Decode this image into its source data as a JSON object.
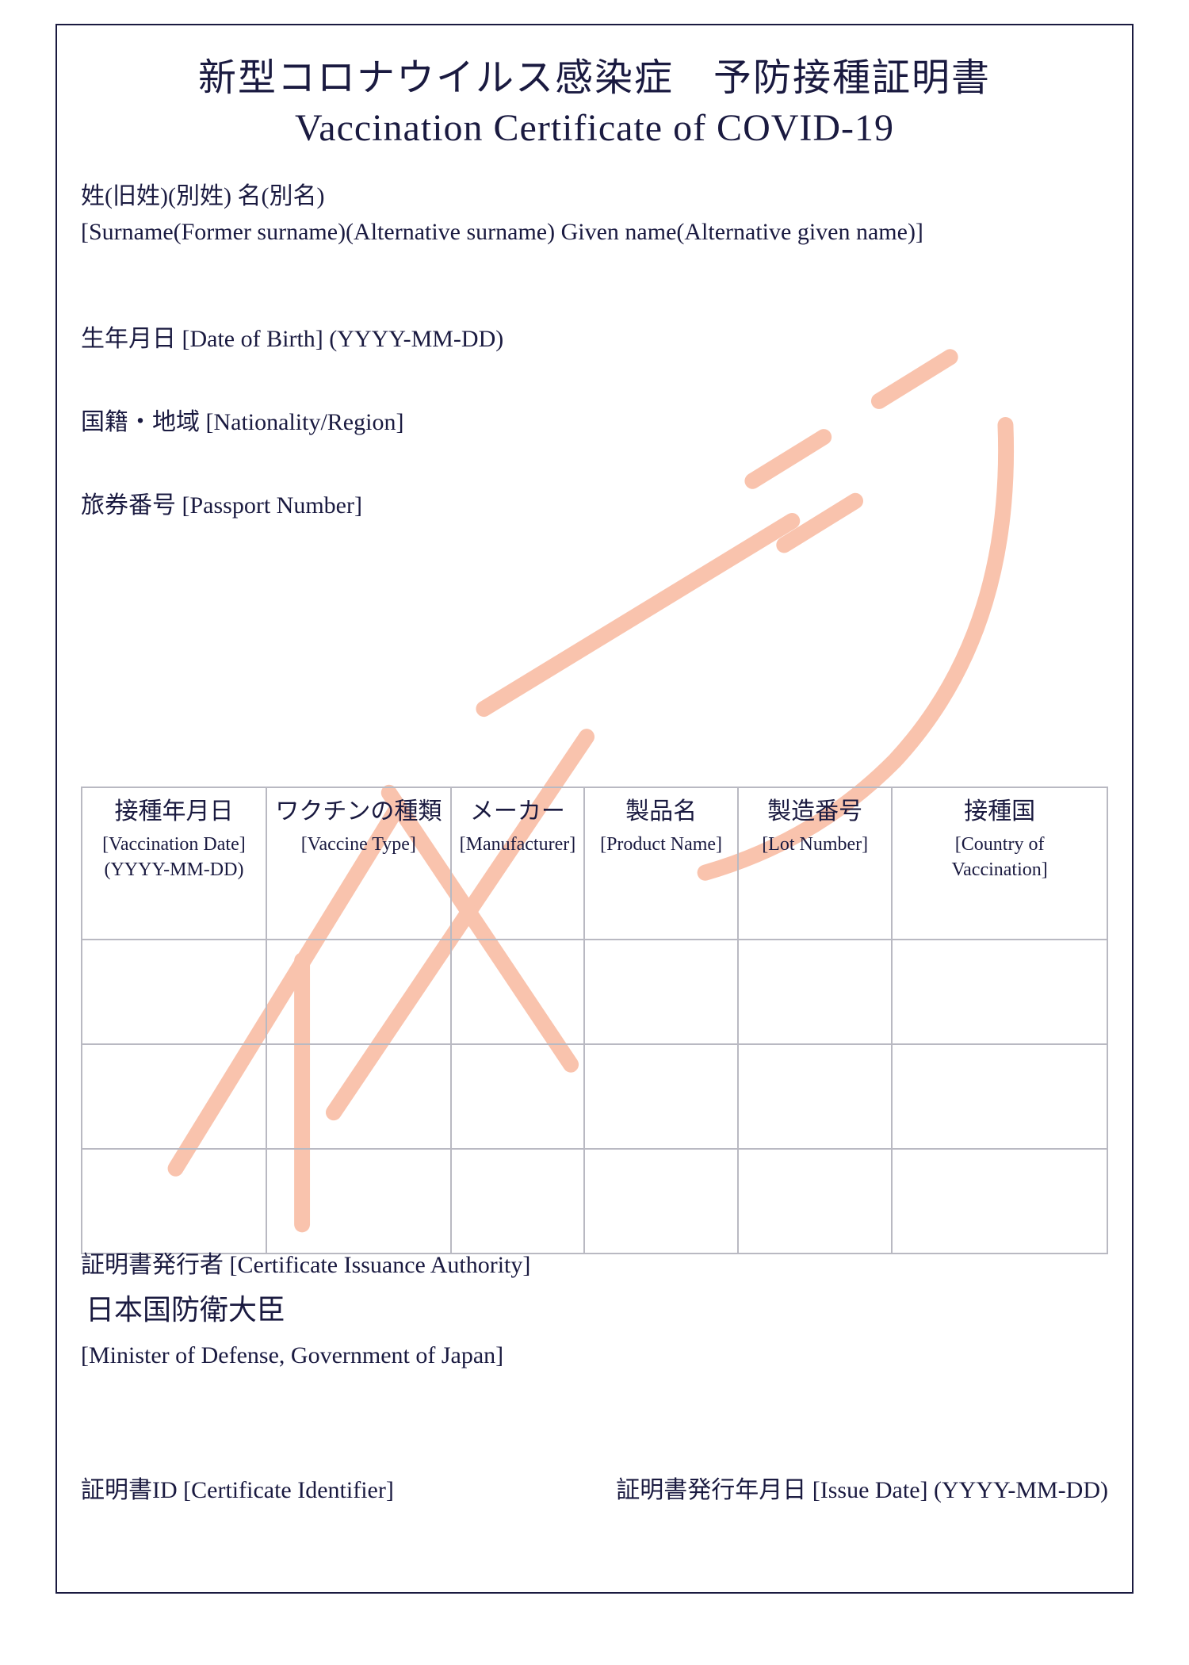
{
  "colors": {
    "text": "#1a1a40",
    "border": "#1a1a40",
    "table_border": "#b9b9c2",
    "background": "#ffffff",
    "watermark": "#f9c3ad"
  },
  "title": {
    "ja": "新型コロナウイルス感染症　予防接種証明書",
    "en": "Vaccination Certificate of COVID-19"
  },
  "fields": {
    "name_ja": "姓(旧姓)(別姓) 名(別名)",
    "name_en": "[Surname(Former surname)(Alternative surname) Given name(Alternative given name)]",
    "dob": "生年月日 [Date of Birth] (YYYY-MM-DD)",
    "nationality": "国籍・地域 [Nationality/Region]",
    "passport": "旅券番号 [Passport Number]"
  },
  "table": {
    "columns": [
      {
        "ja": "接種年月日",
        "en": "[Vaccination Date]",
        "en2": "(YYYY-MM-DD)",
        "width": "18%"
      },
      {
        "ja": "ワクチンの種類",
        "en": "[Vaccine Type]",
        "en2": "",
        "width": "18%"
      },
      {
        "ja": "メーカー",
        "en": "[Manufacturer]",
        "en2": "",
        "width": "13%"
      },
      {
        "ja": "製品名",
        "en": "[Product Name]",
        "en2": "",
        "width": "15%"
      },
      {
        "ja": "製造番号",
        "en": "[Lot Number]",
        "en2": "",
        "width": "15%"
      },
      {
        "ja": "接種国",
        "en": "[Country of",
        "en2": "Vaccination]",
        "width": "21%"
      }
    ],
    "blank_rows": 3
  },
  "issuer": {
    "label": "証明書発行者 [Certificate Issuance Authority]",
    "value_ja": "日本国防衛大臣",
    "value_en": "[Minister of Defense, Government of Japan]"
  },
  "bottom": {
    "cert_id": "証明書ID [Certificate Identifier]",
    "issue_date": "証明書発行年月日 [Issue Date] (YYYY-MM-DD)"
  },
  "watermark_text": "イメージ"
}
